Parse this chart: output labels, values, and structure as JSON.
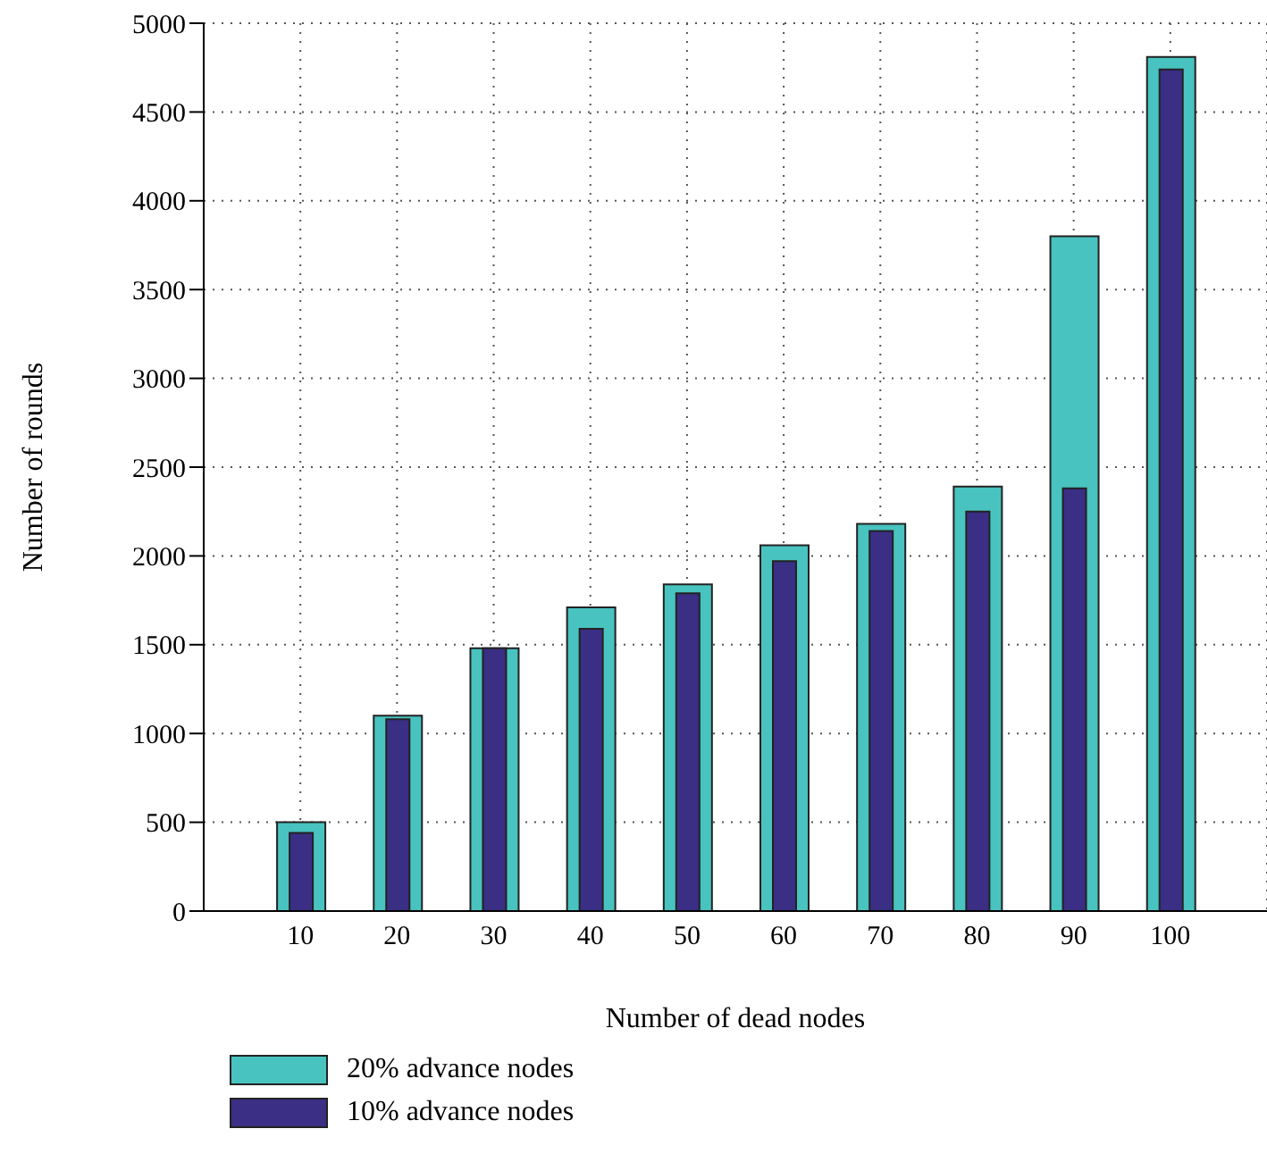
{
  "chart_data": {
    "type": "bar",
    "xlabel": "Number of dead nodes",
    "ylabel": "Number of rounds",
    "x": [
      10,
      20,
      30,
      40,
      50,
      60,
      70,
      80,
      90,
      100
    ],
    "series": [
      {
        "name": "20% advance nodes",
        "color": "#48c3c0",
        "values": [
          500,
          1100,
          1480,
          1710,
          1840,
          2060,
          2180,
          2390,
          3800,
          4810
        ]
      },
      {
        "name": "10% advance nodes",
        "color": "#3a2f84",
        "values": [
          440,
          1080,
          1480,
          1590,
          1790,
          1970,
          2140,
          2250,
          2380,
          4740
        ]
      }
    ],
    "xlim": [
      0,
      110
    ],
    "xticks": [
      10,
      20,
      30,
      40,
      50,
      60,
      70,
      80,
      90,
      100
    ],
    "ylim": [
      0,
      5000
    ],
    "yticks": [
      0,
      500,
      1000,
      1500,
      2000,
      2500,
      3000,
      3500,
      4000,
      4500,
      5000
    ],
    "grid": true,
    "legend": "bottom left"
  }
}
